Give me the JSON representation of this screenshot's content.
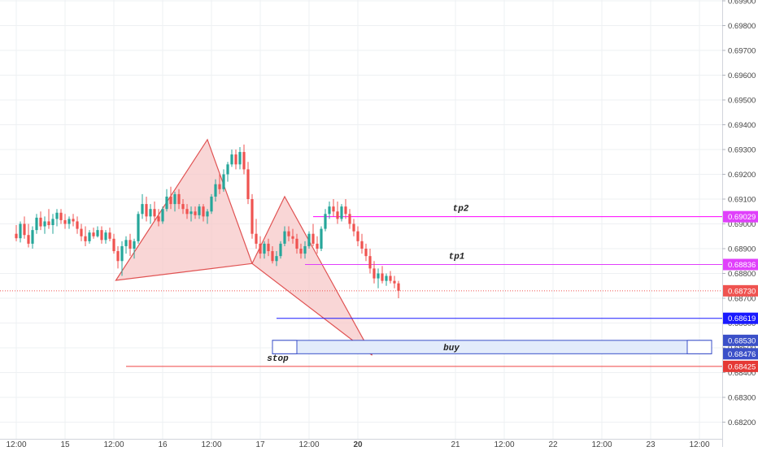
{
  "chart_data": {
    "type": "candlestick",
    "y_scale": {
      "ticks": [
        "0.69900",
        "0.69800",
        "0.69700",
        "0.69600",
        "0.69500",
        "0.69400",
        "0.69300",
        "0.69200",
        "0.69100",
        "0.69000",
        "0.68900",
        "0.68800",
        "0.68700",
        "0.68600",
        "0.68500",
        "0.68400",
        "0.68300",
        "0.68200"
      ],
      "ylim": [
        0.6818,
        0.699
      ]
    },
    "x_axis": {
      "ticks": [
        {
          "label": "12:00",
          "t": 0
        },
        {
          "label": "15",
          "t": 12
        },
        {
          "label": "12:00",
          "t": 24
        },
        {
          "label": "16",
          "t": 36
        },
        {
          "label": "12:00",
          "t": 48
        },
        {
          "label": "17",
          "t": 60
        },
        {
          "label": "12:00",
          "t": 72
        },
        {
          "label": "20",
          "t": 84
        },
        {
          "label": "21",
          "t": 108
        },
        {
          "label": "12:00",
          "t": 120
        },
        {
          "label": "22",
          "t": 132
        },
        {
          "label": "12:00",
          "t": 144
        },
        {
          "label": "23",
          "t": 156
        },
        {
          "label": "12:00",
          "t": 168
        }
      ],
      "bold_labels": [
        "20"
      ]
    },
    "candles": [
      [
        0.6896,
        0.68995,
        0.6893,
        0.68942
      ],
      [
        0.68942,
        0.6901,
        0.68925,
        0.69
      ],
      [
        0.69,
        0.6903,
        0.6894,
        0.68955
      ],
      [
        0.68955,
        0.69,
        0.68905,
        0.6892
      ],
      [
        0.6892,
        0.6899,
        0.689,
        0.68975
      ],
      [
        0.68975,
        0.6904,
        0.6896,
        0.69025
      ],
      [
        0.69025,
        0.6905,
        0.68975,
        0.6899
      ],
      [
        0.6899,
        0.6903,
        0.6896,
        0.6901
      ],
      [
        0.6901,
        0.6906,
        0.6898,
        0.68995
      ],
      [
        0.68995,
        0.6904,
        0.6896,
        0.6902
      ],
      [
        0.6902,
        0.6906,
        0.6899,
        0.69045
      ],
      [
        0.69045,
        0.6906,
        0.69,
        0.69015
      ],
      [
        0.69015,
        0.6904,
        0.6898,
        0.69
      ],
      [
        0.69,
        0.6903,
        0.6898,
        0.6902
      ],
      [
        0.6902,
        0.6904,
        0.6899,
        0.6901
      ],
      [
        0.6901,
        0.6903,
        0.6896,
        0.6898
      ],
      [
        0.6898,
        0.69,
        0.6893,
        0.6895
      ],
      [
        0.6895,
        0.6899,
        0.6891,
        0.6893
      ],
      [
        0.6893,
        0.68975,
        0.6892,
        0.68965
      ],
      [
        0.68965,
        0.68985,
        0.6894,
        0.6895
      ],
      [
        0.6895,
        0.6899,
        0.68945,
        0.68975
      ],
      [
        0.68975,
        0.6899,
        0.6892,
        0.68935
      ],
      [
        0.68935,
        0.68975,
        0.6892,
        0.68965
      ],
      [
        0.68965,
        0.68985,
        0.6893,
        0.6894
      ],
      [
        0.6894,
        0.6896,
        0.6888,
        0.6889
      ],
      [
        0.6889,
        0.6891,
        0.6882,
        0.6885
      ],
      [
        0.6885,
        0.6893,
        0.6879,
        0.6891
      ],
      [
        0.6891,
        0.6895,
        0.6888,
        0.68935
      ],
      [
        0.68935,
        0.6896,
        0.6887,
        0.689
      ],
      [
        0.689,
        0.6894,
        0.6886,
        0.6893
      ],
      [
        0.6893,
        0.6905,
        0.6892,
        0.6904
      ],
      [
        0.6904,
        0.6912,
        0.6902,
        0.6908
      ],
      [
        0.6908,
        0.6911,
        0.6901,
        0.6903
      ],
      [
        0.6903,
        0.6908,
        0.69,
        0.6906
      ],
      [
        0.6906,
        0.6909,
        0.6901,
        0.6903
      ],
      [
        0.6903,
        0.6906,
        0.6899,
        0.6901
      ],
      [
        0.6901,
        0.6907,
        0.69,
        0.6906
      ],
      [
        0.6906,
        0.6914,
        0.6905,
        0.6911
      ],
      [
        0.6911,
        0.6915,
        0.6906,
        0.6908
      ],
      [
        0.6908,
        0.6913,
        0.6905,
        0.6912
      ],
      [
        0.6912,
        0.6914,
        0.6906,
        0.6908
      ],
      [
        0.6908,
        0.691,
        0.6904,
        0.6906
      ],
      [
        0.6906,
        0.6908,
        0.6902,
        0.6904
      ],
      [
        0.6904,
        0.6907,
        0.6901,
        0.6905
      ],
      [
        0.6905,
        0.6907,
        0.6902,
        0.69035
      ],
      [
        0.69035,
        0.6908,
        0.6902,
        0.6907
      ],
      [
        0.6907,
        0.6908,
        0.6901,
        0.6903
      ],
      [
        0.6903,
        0.6906,
        0.69,
        0.6905
      ],
      [
        0.6905,
        0.6912,
        0.6904,
        0.6911
      ],
      [
        0.6911,
        0.6918,
        0.6909,
        0.6916
      ],
      [
        0.6916,
        0.692,
        0.6912,
        0.6914
      ],
      [
        0.6914,
        0.6922,
        0.6913,
        0.692
      ],
      [
        0.692,
        0.6925,
        0.6917,
        0.6924
      ],
      [
        0.6924,
        0.693,
        0.6923,
        0.6928
      ],
      [
        0.6928,
        0.693,
        0.6922,
        0.6924
      ],
      [
        0.6924,
        0.6931,
        0.6922,
        0.6929
      ],
      [
        0.6929,
        0.6932,
        0.692,
        0.6922
      ],
      [
        0.6922,
        0.6925,
        0.6908,
        0.691
      ],
      [
        0.691,
        0.6912,
        0.6894,
        0.6896
      ],
      [
        0.6896,
        0.6902,
        0.689,
        0.6892
      ],
      [
        0.6892,
        0.6895,
        0.6886,
        0.6888
      ],
      [
        0.6888,
        0.6893,
        0.6886,
        0.6892
      ],
      [
        0.6892,
        0.6894,
        0.6887,
        0.6889
      ],
      [
        0.6889,
        0.6891,
        0.6884,
        0.6885
      ],
      [
        0.6885,
        0.6889,
        0.6883,
        0.6887
      ],
      [
        0.6887,
        0.6893,
        0.6886,
        0.6892
      ],
      [
        0.6892,
        0.6899,
        0.6891,
        0.6897
      ],
      [
        0.6897,
        0.6899,
        0.6893,
        0.6895
      ],
      [
        0.6895,
        0.6898,
        0.6892,
        0.6894
      ],
      [
        0.6894,
        0.6896,
        0.6888,
        0.689
      ],
      [
        0.689,
        0.6892,
        0.6886,
        0.6888
      ],
      [
        0.6888,
        0.6893,
        0.6886,
        0.6891
      ],
      [
        0.6891,
        0.6897,
        0.689,
        0.6896
      ],
      [
        0.6896,
        0.69,
        0.6891,
        0.6892
      ],
      [
        0.6892,
        0.6895,
        0.6888,
        0.689
      ],
      [
        0.689,
        0.6899,
        0.6889,
        0.6898
      ],
      [
        0.6898,
        0.6906,
        0.6897,
        0.6904
      ],
      [
        0.6904,
        0.6909,
        0.6902,
        0.6907
      ],
      [
        0.6907,
        0.691,
        0.6903,
        0.6905
      ],
      [
        0.6905,
        0.6909,
        0.69,
        0.6902
      ],
      [
        0.6902,
        0.6908,
        0.6901,
        0.6907
      ],
      [
        0.6907,
        0.691,
        0.6902,
        0.6904
      ],
      [
        0.6904,
        0.6906,
        0.6898,
        0.69
      ],
      [
        0.69,
        0.6902,
        0.6895,
        0.6897
      ],
      [
        0.6897,
        0.6899,
        0.6891,
        0.6893
      ],
      [
        0.6893,
        0.6896,
        0.6888,
        0.689
      ],
      [
        0.689,
        0.6892,
        0.6885,
        0.6887
      ],
      [
        0.6887,
        0.689,
        0.688,
        0.6882
      ],
      [
        0.6882,
        0.6885,
        0.6876,
        0.6878
      ],
      [
        0.6878,
        0.6882,
        0.6874,
        0.688
      ],
      [
        0.688,
        0.6883,
        0.6876,
        0.6877
      ],
      [
        0.6877,
        0.688,
        0.6875,
        0.6879
      ],
      [
        0.6879,
        0.6881,
        0.6876,
        0.6877
      ],
      [
        0.6877,
        0.6879,
        0.6874,
        0.6876
      ],
      [
        0.6876,
        0.6877,
        0.687,
        0.6873
      ]
    ],
    "candle_colors": {
      "up": "#26a69a",
      "down": "#ef5350"
    },
    "patterns": [
      {
        "name": "harmonic-1",
        "points": [
          [
            24.5,
            0.68772
          ],
          [
            47.0,
            0.6934
          ],
          [
            58.0,
            0.6884
          ]
        ],
        "fill": "#f7c5c5",
        "stroke": "#e05252"
      },
      {
        "name": "harmonic-2",
        "points": [
          [
            58.0,
            0.6884
          ],
          [
            66.0,
            0.6911
          ],
          [
            87.5,
            0.6847
          ]
        ],
        "fill": "#f7c5c5",
        "stroke": "#e05252"
      }
    ],
    "levels": [
      {
        "name": "tp2",
        "label": "tp2",
        "price": 0.69029,
        "price_label": "0.69029",
        "t_start": 73,
        "color": "#ff00ff",
        "tag_bg": "#e040fb",
        "tag_fg": "#ffffff"
      },
      {
        "name": "tp1",
        "label": "tp1",
        "price": 0.68836,
        "price_label": "0.68836",
        "t_start": 71,
        "color": "#e040fb",
        "tag_bg": "#e040fb",
        "tag_fg": "#ffffff"
      },
      {
        "name": "level-68619",
        "label": "",
        "price": 0.68619,
        "price_label": "0.68619",
        "t_start": 64,
        "color": "#1a1aff",
        "tag_bg": "#1a1aff",
        "tag_fg": "#ffffff"
      },
      {
        "name": "stop",
        "label": "stop",
        "price": 0.68425,
        "price_label": "0.68425",
        "t_start": 27,
        "color": "#ef4444",
        "tag_bg": "#e53935",
        "tag_fg": "#ffffff"
      }
    ],
    "zone": {
      "label": "buy",
      "top": 0.6853,
      "bottom": 0.68476,
      "top_label": "0.68530",
      "bottom_label": "0.68476",
      "t_start": 63,
      "t_end": 171,
      "fill": "#e3ecfb",
      "stroke": "#3b50c8",
      "tag_bg": "#3b50c8"
    },
    "last_price": {
      "price": 0.6873,
      "label": "0.68730",
      "color": "#ef5350"
    },
    "grid": true
  }
}
